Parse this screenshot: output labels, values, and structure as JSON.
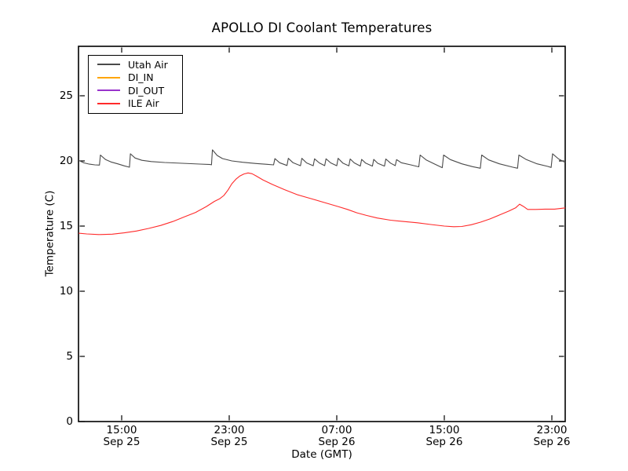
{
  "figure": {
    "title": "APOLLO DI Coolant Temperatures",
    "xlabel": "Date (GMT)",
    "ylabel": "Temperature (C)"
  },
  "chart_data": {
    "type": "line",
    "title": "APOLLO DI Coolant Temperatures",
    "xlabel": "Date (GMT)",
    "ylabel": "Temperature (C)",
    "x_axis_unit": "hours since Sep 25 00:00 GMT",
    "xlim": [
      11.8,
      48.0
    ],
    "ylim": [
      0,
      28.8
    ],
    "grid": false,
    "legend_position": "upper left",
    "frame_color": "#000000",
    "y_ticks": [
      0,
      5,
      10,
      15,
      20,
      25
    ],
    "x_ticks": [
      {
        "hour": 15,
        "time": "15:00",
        "date": "Sep 25"
      },
      {
        "hour": 23,
        "time": "23:00",
        "date": "Sep 25"
      },
      {
        "hour": 31,
        "time": "07:00",
        "date": "Sep 26"
      },
      {
        "hour": 39,
        "time": "15:00",
        "date": "Sep 26"
      },
      {
        "hour": 47,
        "time": "23:00",
        "date": "Sep 26"
      }
    ],
    "series": [
      {
        "name": "Utah Air",
        "color": "#4a4a4a",
        "points": [
          [
            11.8,
            20.05
          ],
          [
            12.2,
            19.85
          ],
          [
            12.6,
            19.75
          ],
          [
            13.0,
            19.7
          ],
          [
            13.35,
            19.68
          ],
          [
            13.42,
            20.45
          ],
          [
            13.8,
            20.1
          ],
          [
            14.2,
            19.92
          ],
          [
            14.7,
            19.78
          ],
          [
            15.2,
            19.62
          ],
          [
            15.58,
            19.52
          ],
          [
            15.65,
            20.55
          ],
          [
            16.0,
            20.22
          ],
          [
            16.5,
            20.05
          ],
          [
            17.2,
            19.95
          ],
          [
            18.2,
            19.88
          ],
          [
            19.5,
            19.82
          ],
          [
            20.8,
            19.76
          ],
          [
            21.6,
            19.72
          ],
          [
            21.68,
            19.7
          ],
          [
            21.75,
            20.85
          ],
          [
            22.1,
            20.42
          ],
          [
            22.5,
            20.18
          ],
          [
            23.2,
            20.0
          ],
          [
            24.0,
            19.9
          ],
          [
            25.0,
            19.8
          ],
          [
            25.8,
            19.74
          ],
          [
            26.3,
            19.7
          ],
          [
            26.4,
            20.18
          ],
          [
            26.75,
            19.86
          ],
          [
            27.3,
            19.65
          ],
          [
            27.4,
            20.2
          ],
          [
            27.75,
            19.86
          ],
          [
            28.3,
            19.63
          ],
          [
            28.4,
            20.2
          ],
          [
            28.75,
            19.85
          ],
          [
            29.25,
            19.63
          ],
          [
            29.35,
            20.16
          ],
          [
            29.7,
            19.85
          ],
          [
            30.1,
            19.64
          ],
          [
            30.2,
            20.16
          ],
          [
            30.55,
            19.85
          ],
          [
            31.0,
            19.63
          ],
          [
            31.1,
            20.2
          ],
          [
            31.45,
            19.84
          ],
          [
            31.9,
            19.62
          ],
          [
            32.0,
            20.15
          ],
          [
            32.3,
            19.85
          ],
          [
            32.75,
            19.61
          ],
          [
            32.85,
            20.12
          ],
          [
            33.15,
            19.83
          ],
          [
            33.65,
            19.6
          ],
          [
            33.75,
            20.12
          ],
          [
            34.05,
            19.82
          ],
          [
            34.55,
            19.6
          ],
          [
            34.65,
            20.15
          ],
          [
            35.0,
            19.83
          ],
          [
            35.35,
            19.64
          ],
          [
            35.45,
            20.1
          ],
          [
            35.8,
            19.86
          ],
          [
            36.5,
            19.7
          ],
          [
            37.1,
            19.55
          ],
          [
            37.2,
            20.45
          ],
          [
            37.65,
            20.08
          ],
          [
            38.3,
            19.75
          ],
          [
            38.85,
            19.48
          ],
          [
            38.95,
            20.45
          ],
          [
            39.45,
            20.1
          ],
          [
            40.3,
            19.78
          ],
          [
            41.1,
            19.56
          ],
          [
            41.68,
            19.44
          ],
          [
            41.78,
            20.45
          ],
          [
            42.3,
            20.08
          ],
          [
            43.1,
            19.78
          ],
          [
            44.1,
            19.52
          ],
          [
            44.45,
            19.44
          ],
          [
            44.55,
            20.45
          ],
          [
            45.1,
            20.1
          ],
          [
            45.9,
            19.78
          ],
          [
            46.7,
            19.58
          ],
          [
            46.95,
            19.5
          ],
          [
            47.05,
            20.55
          ],
          [
            47.5,
            20.15
          ],
          [
            48.0,
            19.88
          ]
        ]
      },
      {
        "name": "DI_IN",
        "color": "#ffa500",
        "points": []
      },
      {
        "name": "DI_OUT",
        "color": "#9933cc",
        "points": []
      },
      {
        "name": "ILE Air",
        "color": "#ff2a2a",
        "points": [
          [
            11.8,
            14.45
          ],
          [
            12.4,
            14.4
          ],
          [
            13.3,
            14.35
          ],
          [
            14.3,
            14.38
          ],
          [
            15.2,
            14.48
          ],
          [
            16.1,
            14.62
          ],
          [
            17.0,
            14.82
          ],
          [
            17.9,
            15.05
          ],
          [
            18.8,
            15.35
          ],
          [
            19.7,
            15.72
          ],
          [
            20.5,
            16.05
          ],
          [
            21.3,
            16.5
          ],
          [
            21.9,
            16.9
          ],
          [
            22.3,
            17.1
          ],
          [
            22.6,
            17.35
          ],
          [
            22.9,
            17.75
          ],
          [
            23.2,
            18.25
          ],
          [
            23.5,
            18.6
          ],
          [
            23.8,
            18.85
          ],
          [
            24.1,
            19.0
          ],
          [
            24.4,
            19.08
          ],
          [
            24.7,
            19.02
          ],
          [
            25.0,
            18.85
          ],
          [
            25.5,
            18.55
          ],
          [
            26.2,
            18.2
          ],
          [
            27.1,
            17.8
          ],
          [
            28.1,
            17.4
          ],
          [
            29.1,
            17.1
          ],
          [
            30.1,
            16.8
          ],
          [
            31.1,
            16.5
          ],
          [
            31.8,
            16.28
          ],
          [
            32.5,
            16.02
          ],
          [
            33.2,
            15.82
          ],
          [
            34.0,
            15.62
          ],
          [
            35.0,
            15.45
          ],
          [
            36.0,
            15.35
          ],
          [
            37.0,
            15.25
          ],
          [
            38.0,
            15.12
          ],
          [
            39.0,
            15.0
          ],
          [
            39.7,
            14.95
          ],
          [
            40.3,
            14.97
          ],
          [
            41.0,
            15.1
          ],
          [
            41.7,
            15.3
          ],
          [
            42.4,
            15.55
          ],
          [
            43.1,
            15.85
          ],
          [
            43.8,
            16.15
          ],
          [
            44.3,
            16.4
          ],
          [
            44.6,
            16.68
          ],
          [
            44.9,
            16.5
          ],
          [
            45.2,
            16.28
          ],
          [
            45.8,
            16.28
          ],
          [
            46.5,
            16.3
          ],
          [
            47.2,
            16.3
          ],
          [
            48.0,
            16.4
          ]
        ]
      }
    ]
  }
}
